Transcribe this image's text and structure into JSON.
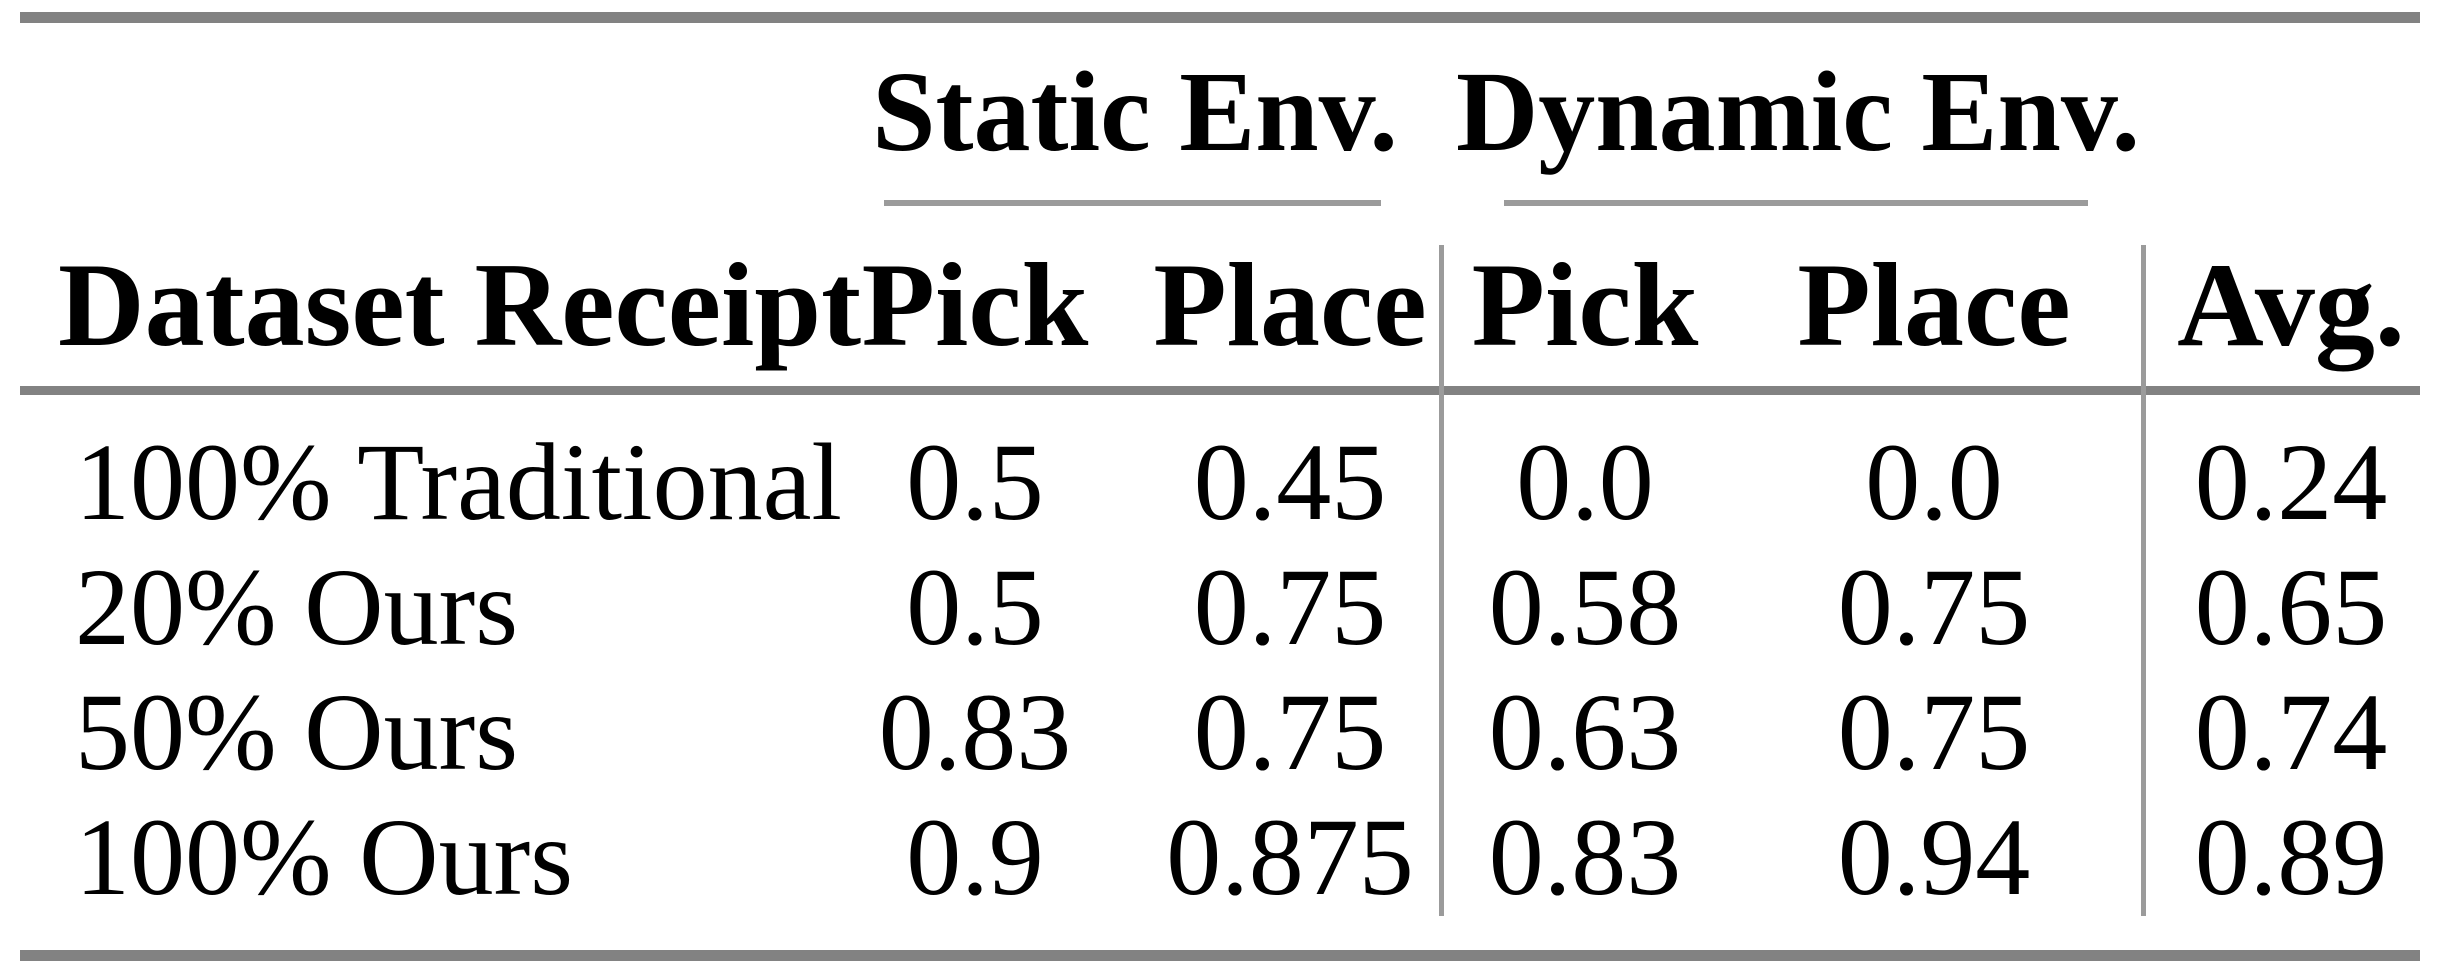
{
  "table": {
    "row_header": "Dataset Receipt",
    "group_headers": [
      {
        "label": "Static Env.",
        "columns": [
          "Pick",
          "Place"
        ]
      },
      {
        "label": "Dynamic Env.",
        "columns": [
          "Pick",
          "Place"
        ]
      }
    ],
    "avg_header": "Avg.",
    "rows": [
      {
        "label": "100% Traditional",
        "values": [
          "0.5",
          "0.45",
          "0.0",
          "0.0",
          "0.24"
        ]
      },
      {
        "label": "20% Ours",
        "values": [
          "0.5",
          "0.75",
          "0.58",
          "0.75",
          "0.65"
        ]
      },
      {
        "label": "50% Ours",
        "values": [
          "0.83",
          "0.75",
          "0.63",
          "0.75",
          "0.74"
        ]
      },
      {
        "label": "100% Ours",
        "values": [
          "0.9",
          "0.875",
          "0.83",
          "0.94",
          "0.89"
        ]
      }
    ]
  },
  "colors": {
    "background": "#ffffff",
    "text": "#000000",
    "rule_heavy": "#828282",
    "rule_light": "#9b9b9b"
  }
}
